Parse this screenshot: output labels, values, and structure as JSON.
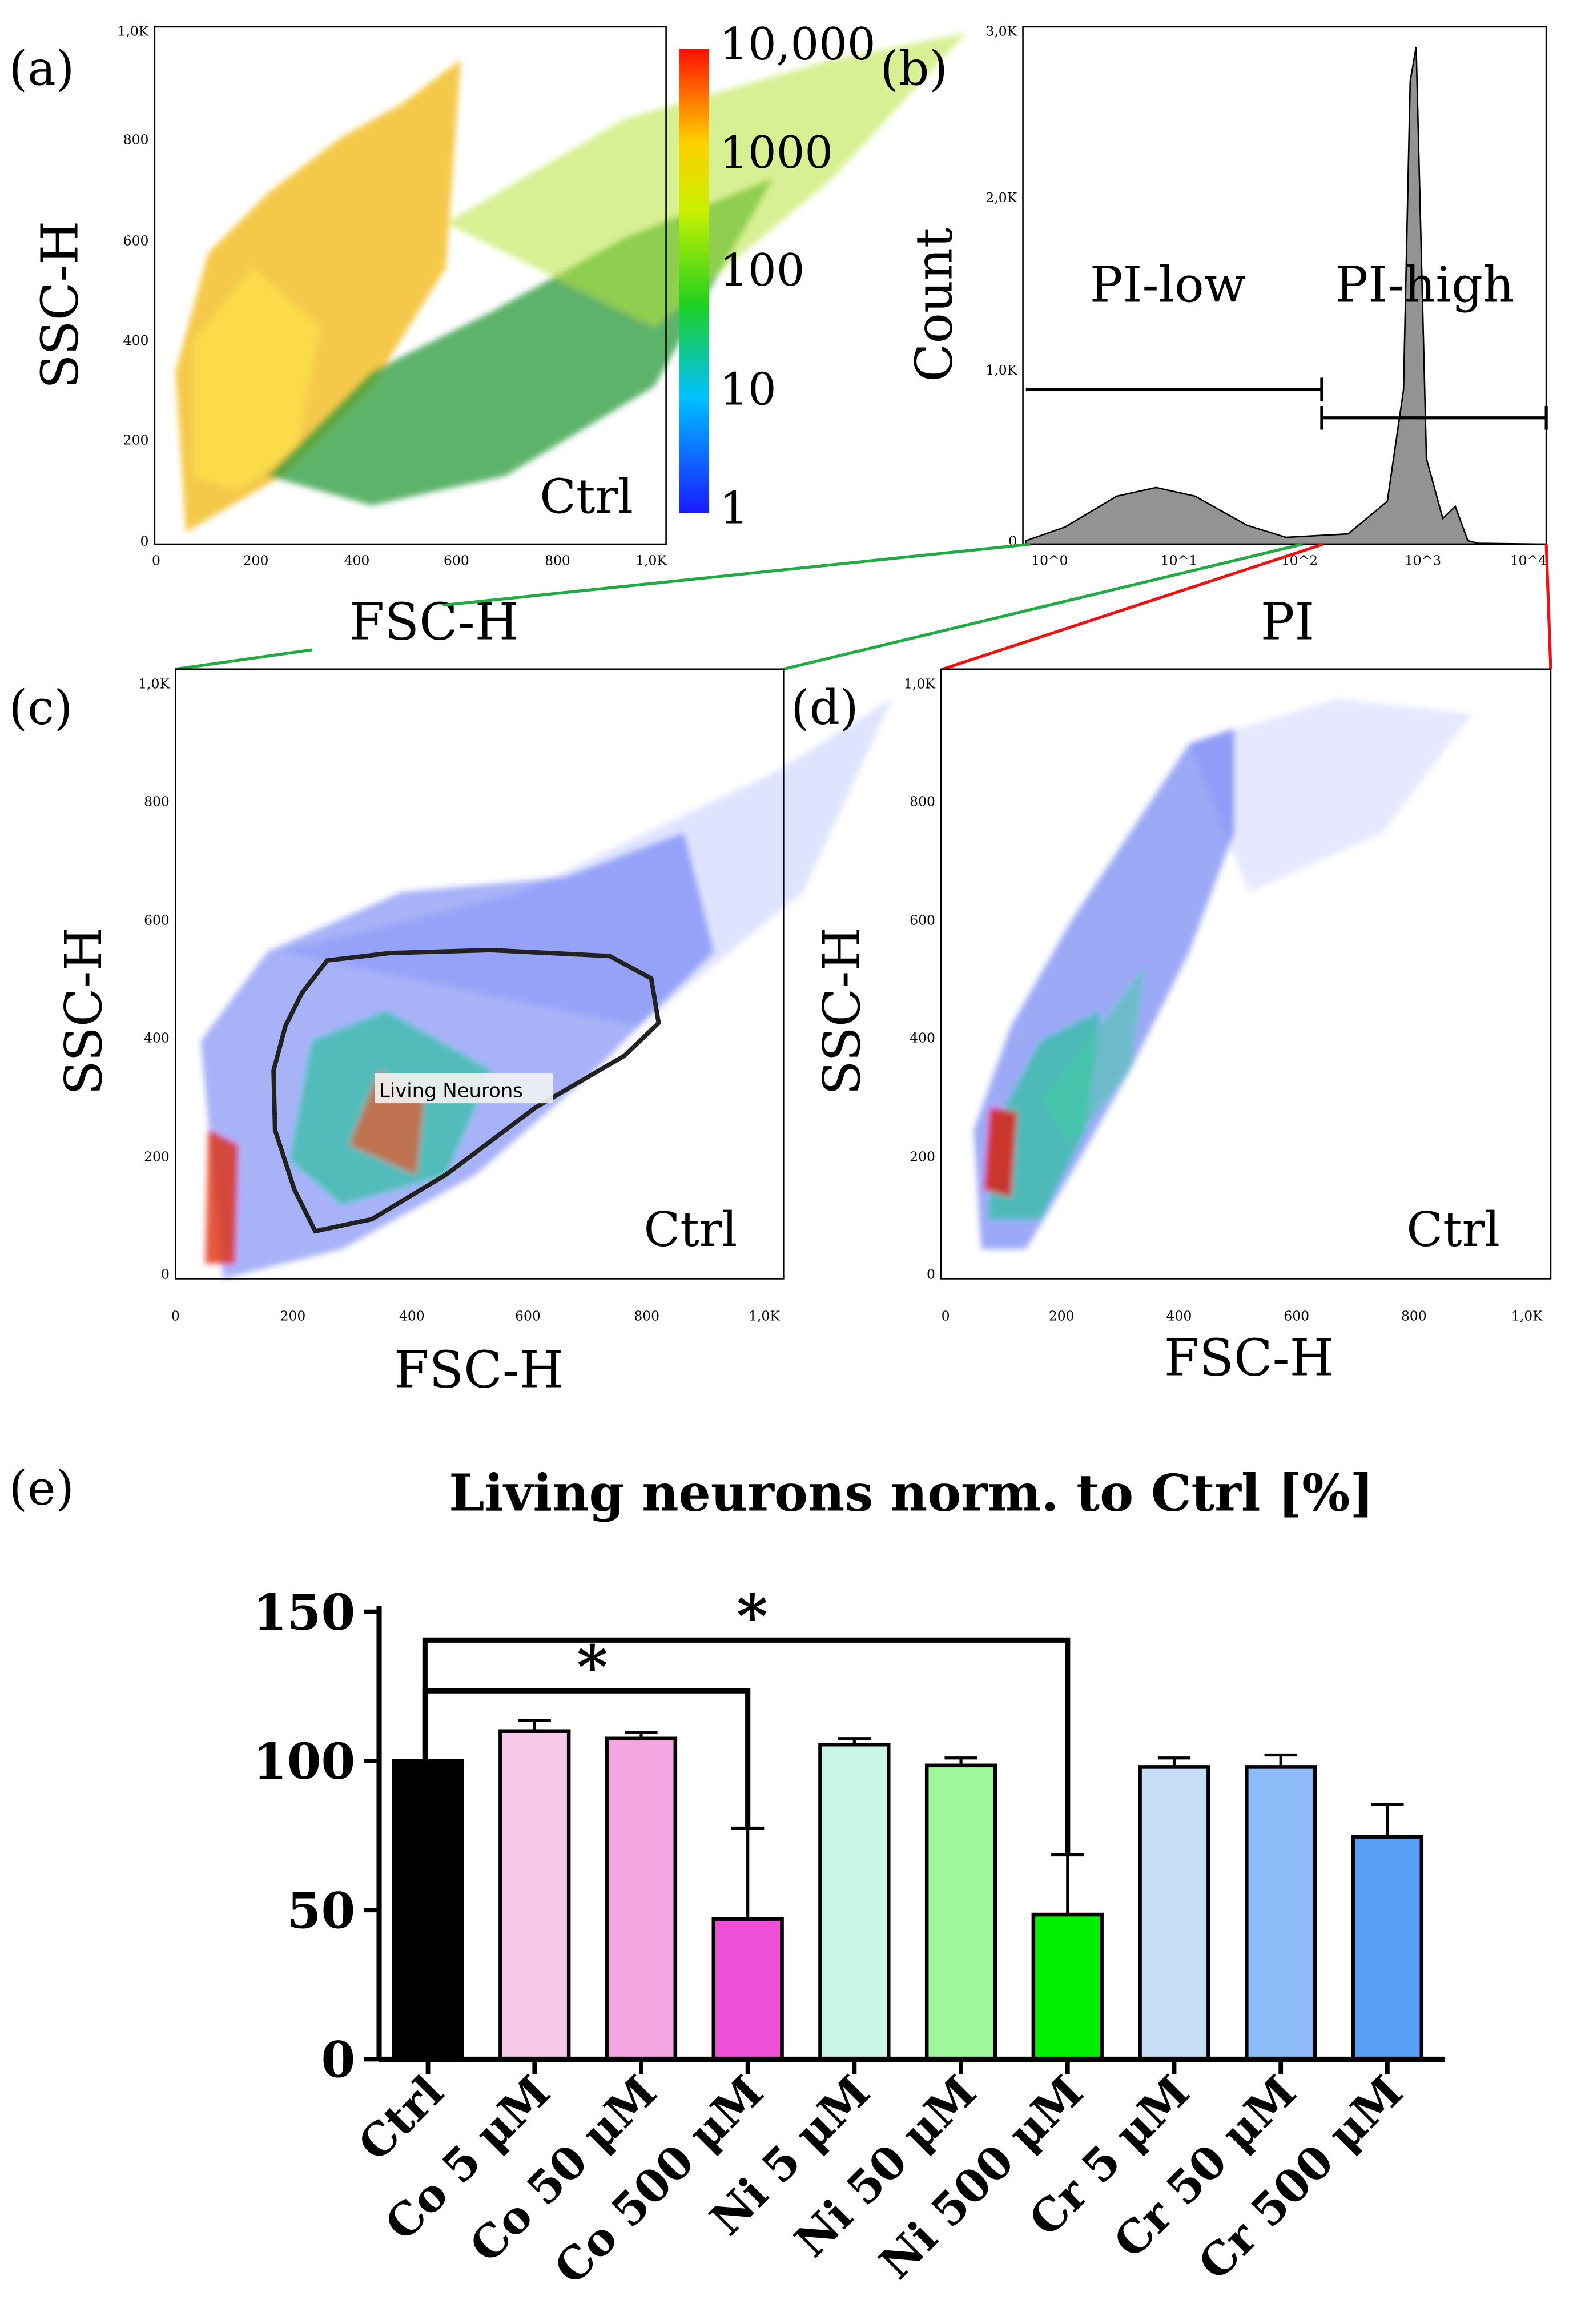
{
  "panels": {
    "a": {
      "letter": "(a)",
      "xlabel": "FSC-H",
      "ylabel": "SSC-H",
      "tag": "Ctrl",
      "xticks": [
        "0",
        "200",
        "400",
        "600",
        "800",
        "1,0K"
      ],
      "yticks": [
        "0",
        "200",
        "400",
        "600",
        "800",
        "1,0K"
      ],
      "colorbar_ticks": [
        "10,000",
        "1000",
        "100",
        "10",
        "1"
      ]
    },
    "b": {
      "letter": "(b)",
      "xlabel": "PI",
      "ylabel": "Count",
      "xticks": [
        "10^0",
        "10^1",
        "10^2",
        "10^3",
        "10^4"
      ],
      "yticks": [
        "0",
        "1,0K",
        "2,0K",
        "3,0K"
      ],
      "gate_low": "PI-low",
      "gate_high": "PI-high"
    },
    "c": {
      "letter": "(c)",
      "xlabel": "FSC-H",
      "ylabel": "SSC-H",
      "tag": "Ctrl",
      "gate_label": "Living Neurons",
      "xticks": [
        "0",
        "200",
        "400",
        "600",
        "800",
        "1,0K"
      ],
      "yticks": [
        "0",
        "200",
        "400",
        "600",
        "800",
        "1,0K"
      ]
    },
    "d": {
      "letter": "(d)",
      "xlabel": "FSC-H",
      "ylabel": "SSC-H",
      "tag": "Ctrl",
      "xticks": [
        "0",
        "200",
        "400",
        "600",
        "800",
        "1,0K"
      ],
      "yticks": [
        "0",
        "200",
        "400",
        "600",
        "800",
        "1,0K"
      ]
    },
    "e": {
      "letter": "(e)"
    }
  },
  "chart_data": [
    {
      "panel": "a",
      "type": "scatter",
      "title": "",
      "xlabel": "FSC-H",
      "ylabel": "SSC-H",
      "xlim": [
        0,
        1000
      ],
      "ylim": [
        0,
        1000
      ],
      "colorbar_range": [
        1,
        10000
      ],
      "annotation": "Ctrl"
    },
    {
      "panel": "b",
      "type": "area",
      "title": "",
      "xlabel": "PI",
      "ylabel": "Count",
      "x_scale": "log",
      "xlim": [
        1,
        10000
      ],
      "ylim": [
        0,
        3000
      ],
      "x": [
        1,
        2,
        5,
        10,
        20,
        50,
        100,
        300,
        600,
        800,
        900,
        1000,
        1200,
        1600,
        2000,
        2500,
        3000,
        10000
      ],
      "y": [
        20,
        100,
        280,
        330,
        280,
        110,
        40,
        60,
        250,
        900,
        2700,
        2900,
        500,
        150,
        220,
        20,
        5,
        0
      ],
      "gates": [
        {
          "name": "PI-low",
          "range": [
            1,
            200
          ]
        },
        {
          "name": "PI-high",
          "range": [
            200,
            10000
          ]
        }
      ]
    },
    {
      "panel": "c",
      "type": "scatter",
      "title": "",
      "xlabel": "FSC-H",
      "ylabel": "SSC-H",
      "xlim": [
        0,
        1000
      ],
      "ylim": [
        0,
        1000
      ],
      "annotation": "Ctrl",
      "gate": "Living Neurons"
    },
    {
      "panel": "d",
      "type": "scatter",
      "title": "",
      "xlabel": "FSC-H",
      "ylabel": "SSC-H",
      "xlim": [
        0,
        1000
      ],
      "ylim": [
        0,
        1000
      ],
      "annotation": "Ctrl"
    },
    {
      "panel": "e",
      "type": "bar",
      "title": "Living neurons norm. to Ctrl [%]",
      "xlabel": "",
      "ylabel": "",
      "ylim": [
        0,
        150
      ],
      "yticks": [
        0,
        50,
        100,
        150
      ],
      "categories": [
        "Ctrl",
        "Co 5 μM",
        "Co 50 μM",
        "Co 500 μM",
        "Ni 5 μM",
        "Ni 50 μM",
        "Ni 500 μM",
        "Cr 5 μM",
        "Cr 50 μM",
        "Cr 500 μM"
      ],
      "values": [
        100,
        110,
        107.5,
        47,
        105.5,
        98.5,
        48.5,
        98,
        98,
        74.5
      ],
      "errors": [
        0,
        3.5,
        2,
        30.5,
        2,
        2.5,
        20,
        3,
        4,
        11
      ],
      "colors": [
        "#000000",
        "#f7c8ea",
        "#f3a6e1",
        "#f050d8",
        "#c9f5e4",
        "#9ff79c",
        "#00f000",
        "#c9dcf6",
        "#8dbbf7",
        "#58a0f7"
      ],
      "significance": [
        {
          "from": "Ctrl",
          "to": "Co 500 μM",
          "label": "*"
        },
        {
          "from": "Ctrl",
          "to": "Ni 500 μM",
          "label": "*"
        }
      ]
    }
  ]
}
